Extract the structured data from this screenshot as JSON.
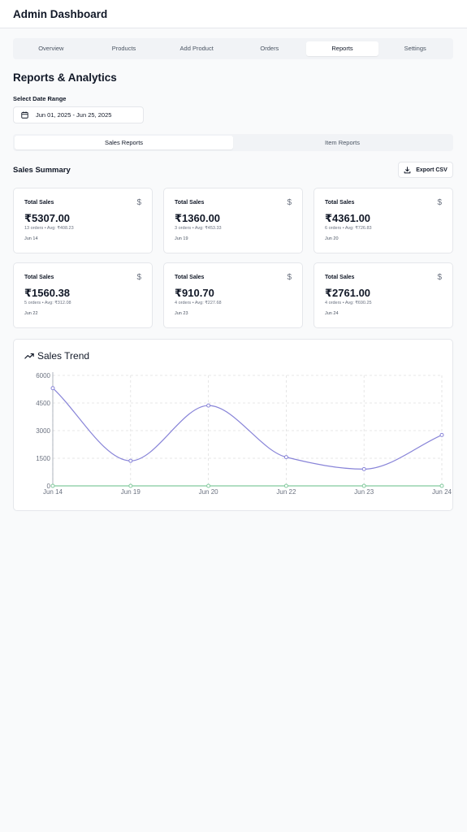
{
  "header": {
    "title": "Admin Dashboard"
  },
  "tabs": [
    {
      "label": "Overview",
      "active": false
    },
    {
      "label": "Products",
      "active": false
    },
    {
      "label": "Add Product",
      "active": false
    },
    {
      "label": "Orders",
      "active": false
    },
    {
      "label": "Reports",
      "active": true
    },
    {
      "label": "Settings",
      "active": false
    }
  ],
  "page": {
    "heading": "Reports & Analytics",
    "date_range_label": "Select Date Range",
    "date_range_value": "Jun 01, 2025 - Jun 25, 2025"
  },
  "subtabs": [
    {
      "label": "Sales Reports",
      "active": true
    },
    {
      "label": "Item Reports",
      "active": false
    }
  ],
  "summary": {
    "title": "Sales Summary",
    "export_label": "Export CSV",
    "cards": [
      {
        "label": "Total Sales",
        "icon": "$",
        "value": "₹5307.00",
        "meta": "13 orders • Avg: ₹408.23",
        "date": "Jun 14"
      },
      {
        "label": "Total Sales",
        "icon": "$",
        "value": "₹1360.00",
        "meta": "3 orders • Avg: ₹453.33",
        "date": "Jun 19"
      },
      {
        "label": "Total Sales",
        "icon": "$",
        "value": "₹4361.00",
        "meta": "6 orders • Avg: ₹726.83",
        "date": "Jun 20"
      },
      {
        "label": "Total Sales",
        "icon": "$",
        "value": "₹1560.38",
        "meta": "5 orders • Avg: ₹312.08",
        "date": "Jun 22"
      },
      {
        "label": "Total Sales",
        "icon": "$",
        "value": "₹910.70",
        "meta": "4 orders • Avg: ₹227.68",
        "date": "Jun 23"
      },
      {
        "label": "Total Sales",
        "icon": "$",
        "value": "₹2761.00",
        "meta": "4 orders • Avg: ₹690.25",
        "date": "Jun 24"
      }
    ]
  },
  "trend": {
    "title": "Sales Trend"
  },
  "chart_data": {
    "type": "line",
    "title": "Sales Trend",
    "categories": [
      "Jun 14",
      "Jun 19",
      "Jun 20",
      "Jun 22",
      "Jun 23",
      "Jun 24"
    ],
    "series": [
      {
        "values": [
          5307.0,
          1360.0,
          4361.0,
          1560.38,
          910.7,
          2761.0
        ],
        "color": "#8884d8"
      },
      {
        "values": [
          0,
          0,
          0,
          0,
          0,
          0
        ],
        "color": "#82ca9d"
      }
    ],
    "yticks": [
      0,
      1500,
      3000,
      4500,
      6000
    ],
    "ylim": [
      0,
      6000
    ],
    "grid": true,
    "legend": "none"
  },
  "colors": {
    "primary_line": "#8884d8",
    "secondary_line": "#82ca9d",
    "border": "#e5e7eb",
    "background": "#f9fafb"
  }
}
